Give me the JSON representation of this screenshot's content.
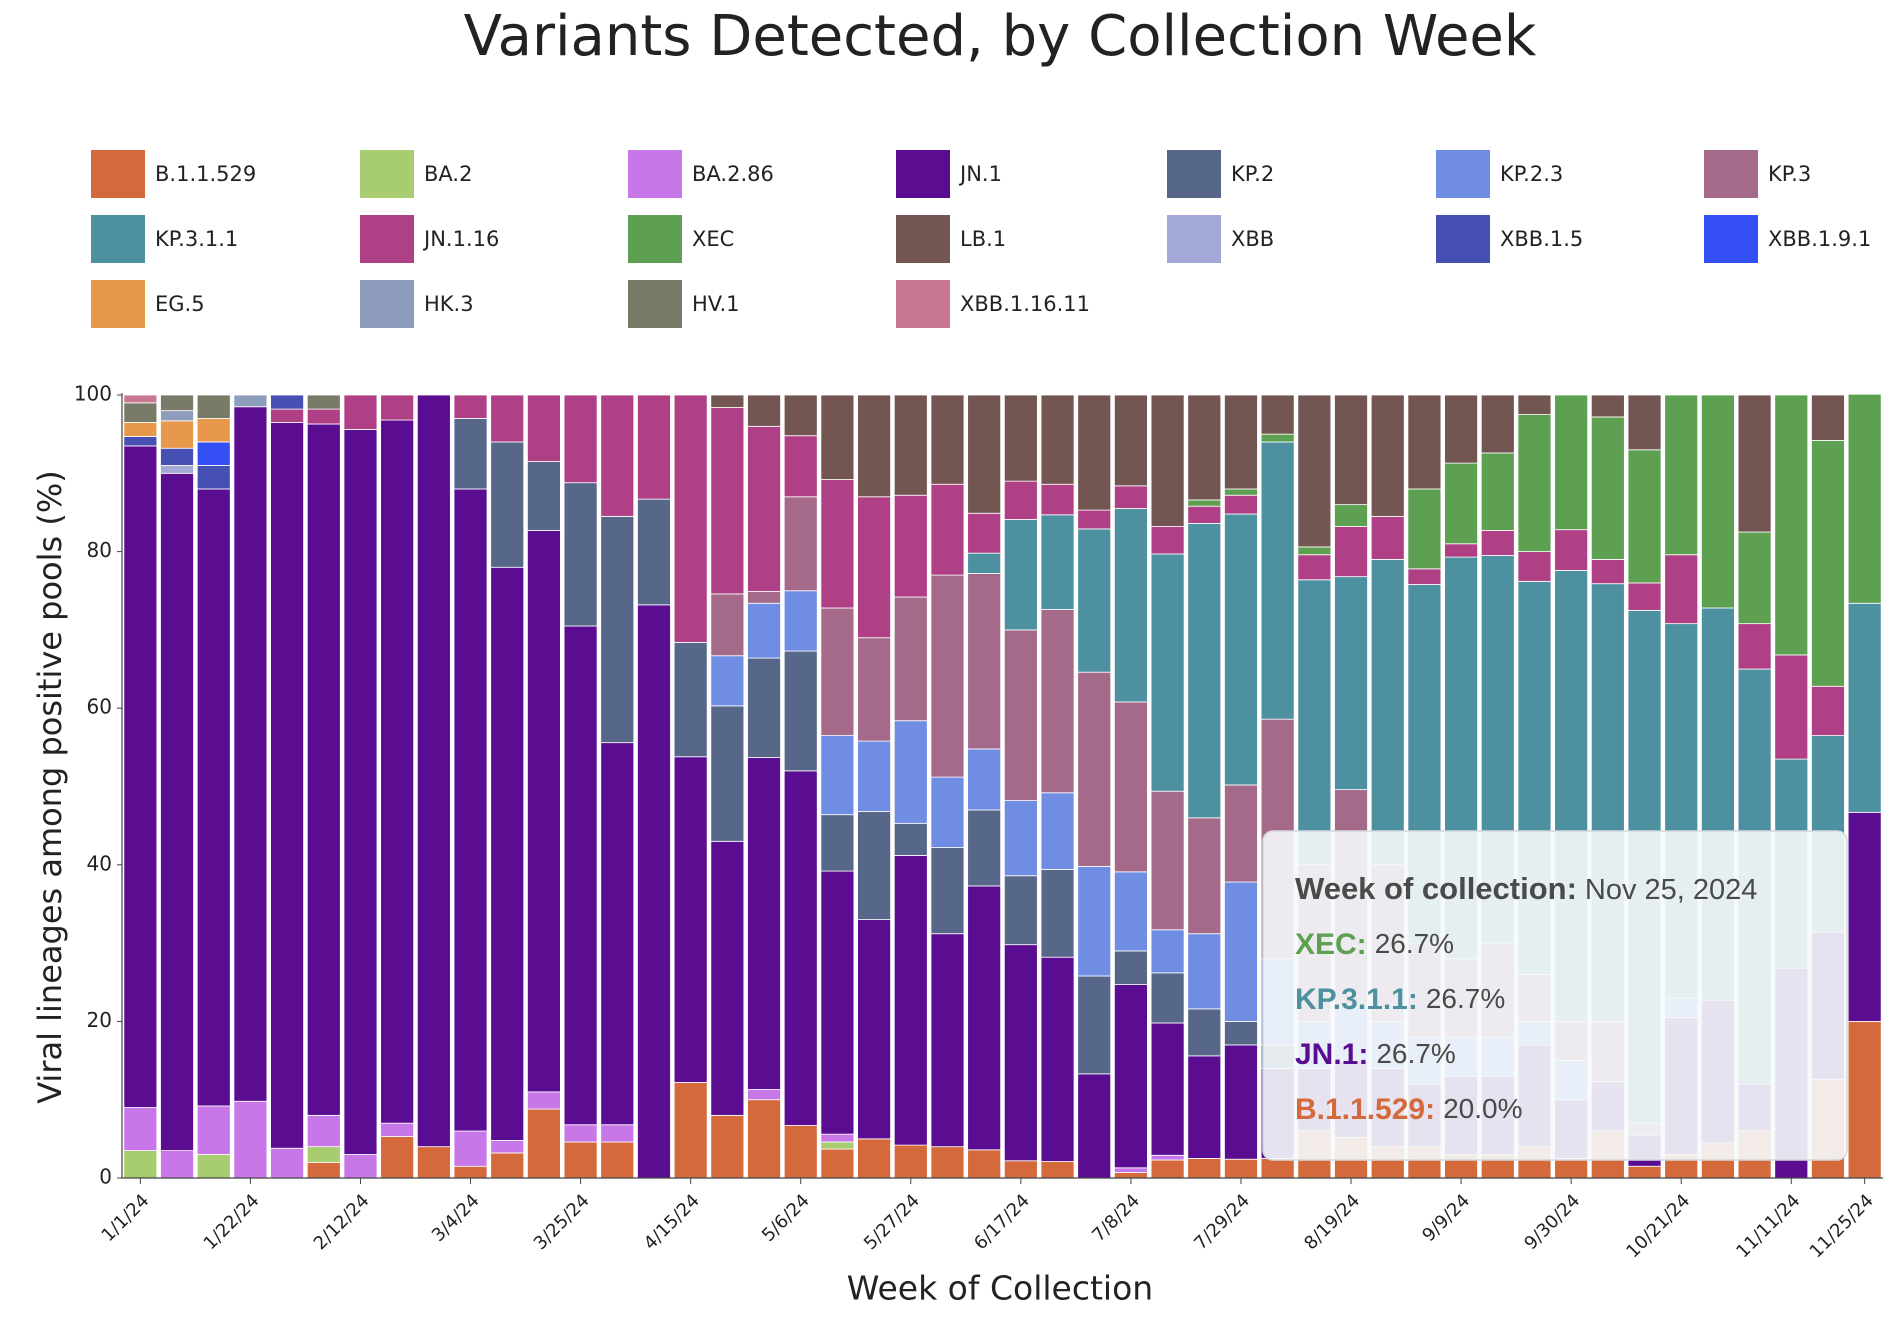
{
  "chart_data": {
    "type": "bar",
    "stacked": true,
    "title": "Variants Detected, by Collection Week",
    "x_label": "Week of Collection",
    "y_label": "Viral lineages among positive pools (%)",
    "legend": "top",
    "grid": false,
    "ylim": [
      0,
      100
    ],
    "yticks": [
      0,
      20,
      40,
      60,
      80,
      100
    ],
    "categories": [
      "1/1/24",
      null,
      null,
      "1/22/24",
      null,
      null,
      "2/12/24",
      null,
      null,
      "3/4/24",
      null,
      null,
      "3/25/24",
      null,
      null,
      "4/15/24",
      null,
      null,
      "5/6/24",
      null,
      null,
      "5/27/24",
      null,
      null,
      "6/17/24",
      null,
      null,
      "7/8/24",
      null,
      null,
      "7/29/24",
      null,
      null,
      "8/19/24",
      null,
      null,
      "9/9/24",
      null,
      null,
      "9/30/24",
      null,
      null,
      "10/21/24",
      null,
      null,
      "11/11/24",
      null,
      "11/25/24"
    ],
    "series": [
      {
        "name": "B.1.1.529",
        "color": "#d4693b",
        "values": [
          0,
          0,
          0,
          0,
          0,
          2,
          0,
          5.3,
          4,
          1.5,
          3.2,
          8.8,
          4.6,
          4.6,
          0,
          12.2,
          8,
          10,
          6.7,
          3.7,
          5,
          4.2,
          4,
          3.6,
          2.2,
          2.1,
          0,
          0.7,
          2.3,
          2.5,
          2.4,
          2.5,
          6,
          5.2,
          4,
          4,
          3,
          3,
          4,
          2.5,
          6,
          1.5,
          3,
          4.5,
          6,
          0,
          12.6,
          20
        ]
      },
      {
        "name": "BA.2",
        "color": "#a8cc70",
        "values": [
          3.5,
          0,
          3,
          0,
          0,
          2,
          0,
          0,
          0,
          0,
          0,
          0,
          0,
          0,
          0,
          0,
          0,
          0,
          0,
          0.9,
          0,
          0,
          0,
          0,
          0,
          0,
          0,
          0,
          0,
          0,
          0,
          0,
          0,
          0,
          0,
          0,
          0,
          0,
          0,
          0,
          0,
          0,
          0,
          0,
          0,
          0,
          0,
          0
        ]
      },
      {
        "name": "BA.2.86",
        "color": "#c877e8",
        "values": [
          5.5,
          3.5,
          6.2,
          9.8,
          3.8,
          4,
          3,
          1.7,
          0,
          4.5,
          1.6,
          2.2,
          2.2,
          2.2,
          0,
          0,
          0,
          1.3,
          0,
          1,
          0,
          0,
          0,
          0,
          0,
          0,
          0,
          0.6,
          0.6,
          0,
          0,
          0,
          0,
          0,
          0,
          0,
          0,
          0,
          0,
          0,
          0,
          0,
          0,
          0,
          0,
          0,
          0,
          0
        ]
      },
      {
        "name": "JN.1",
        "color": "#5b0d91",
        "values": [
          84.5,
          86.5,
          78.8,
          88.7,
          92.7,
          88.3,
          92.6,
          89.8,
          96,
          82,
          73.2,
          71.7,
          63.7,
          48.8,
          73.2,
          41.6,
          35,
          42.4,
          45.3,
          33.6,
          28,
          37,
          27.2,
          33.7,
          27.6,
          26.1,
          13.3,
          23.4,
          16.9,
          13.1,
          14.6,
          11.5,
          8,
          9.8,
          10,
          8,
          10,
          10,
          13,
          7.5,
          6.3,
          4,
          17.5,
          18.2,
          6,
          26.8,
          18.8,
          26.7
        ]
      },
      {
        "name": "KP.2",
        "color": "#566789",
        "values": [
          0,
          0,
          0,
          0,
          0,
          0,
          0,
          0,
          0,
          9,
          16,
          8.8,
          18.3,
          28.9,
          13.5,
          14.6,
          17.3,
          12.7,
          15.3,
          7.2,
          13.8,
          4.1,
          11,
          9.7,
          8.8,
          11.2,
          12.5,
          4.3,
          6.4,
          6,
          3,
          3,
          0,
          0,
          0,
          0,
          0,
          0,
          0,
          0,
          0,
          0,
          0,
          0,
          0,
          0,
          0,
          0
        ]
      },
      {
        "name": "KP.2.3",
        "color": "#6e8de3",
        "values": [
          0,
          0,
          0,
          0,
          0,
          0,
          0,
          0,
          0,
          0,
          0,
          0,
          0,
          0,
          0,
          0,
          6.4,
          7,
          7.7,
          10.1,
          9,
          13.1,
          9,
          7.8,
          9.6,
          9.8,
          14,
          10.1,
          5.5,
          9.6,
          17.8,
          11,
          6,
          7,
          6,
          6,
          5,
          5,
          3,
          5,
          0,
          0,
          2.5,
          0,
          0,
          0,
          0,
          0
        ]
      },
      {
        "name": "KP.3",
        "color": "#a5698a",
        "values": [
          0,
          0,
          0,
          0,
          0,
          0,
          0,
          0,
          0,
          0,
          0,
          0,
          0,
          0,
          0,
          0,
          7.9,
          1.5,
          12,
          16.3,
          13.2,
          15.8,
          25.8,
          22.4,
          21.8,
          23.4,
          24.8,
          21.7,
          17.7,
          14.8,
          12.4,
          30.6,
          20,
          27.6,
          20,
          12,
          10,
          12,
          6,
          5,
          7.7,
          1.5,
          0,
          0,
          0,
          0,
          0,
          0
        ]
      },
      {
        "name": "KP.3.1.1",
        "color": "#4d90a0",
        "values": [
          0,
          0,
          0,
          0,
          0,
          0,
          0,
          0,
          0,
          0,
          0,
          0,
          0,
          0,
          0,
          0,
          0,
          0,
          0,
          0,
          0,
          0,
          0,
          2.6,
          14.1,
          12.1,
          18.3,
          24.7,
          30.3,
          37.6,
          34.6,
          35.4,
          36.4,
          27.2,
          39,
          45.8,
          51.3,
          49.5,
          50.2,
          57.6,
          55.9,
          65.5,
          47.8,
          50.1,
          53,
          26.7,
          25.1,
          26.7
        ]
      },
      {
        "name": "JN.1.16",
        "color": "#b04085",
        "values": [
          0,
          0,
          0,
          0,
          1.7,
          1.9,
          4.4,
          3.2,
          0,
          3,
          6,
          8.5,
          11.2,
          15.5,
          13.3,
          31.6,
          23.8,
          21.1,
          7.8,
          16.4,
          18,
          13,
          11.6,
          5.1,
          4.9,
          3.9,
          2.4,
          2.9,
          3.5,
          2.2,
          2.4,
          0,
          3.2,
          6.4,
          5.5,
          2,
          1.7,
          3.2,
          3.8,
          5.2,
          3.1,
          3.5,
          8.8,
          0,
          5.8,
          13.3,
          6.3,
          0
        ]
      },
      {
        "name": "XEC",
        "color": "#5ea052",
        "values": [
          0,
          0,
          0,
          0,
          0,
          0,
          0,
          0,
          0,
          0,
          0,
          0,
          0,
          0,
          0,
          0,
          0,
          0,
          0,
          0,
          0,
          0,
          0,
          0,
          0,
          0,
          0,
          0,
          0,
          0.8,
          0.8,
          1,
          1,
          2.8,
          0,
          10.2,
          10.3,
          9.9,
          17.5,
          17.2,
          18.2,
          17,
          20.4,
          27.2,
          11.7,
          33.2,
          31.4,
          26.7
        ]
      },
      {
        "name": "LB.1",
        "color": "#735551",
        "values": [
          0,
          0,
          0,
          0,
          0,
          0,
          0,
          0,
          0,
          0,
          0,
          0,
          0,
          0,
          0,
          0,
          1.6,
          4,
          5.2,
          10.8,
          13,
          12.8,
          11.4,
          15.1,
          11,
          11.4,
          14.7,
          11.6,
          16.8,
          13.4,
          12,
          5,
          19.4,
          14,
          15.5,
          12,
          8.7,
          7.4,
          2.5,
          0,
          2.8,
          7,
          0,
          0,
          17.5,
          0,
          5.8,
          0
        ]
      },
      {
        "name": "XBB",
        "color": "#a3a8d6",
        "values": [
          0,
          1,
          0,
          0,
          0,
          0,
          0,
          0,
          0,
          0,
          0,
          0,
          0,
          0,
          0,
          0,
          0,
          0,
          0,
          0,
          0,
          0,
          0,
          0,
          0,
          0,
          0,
          0,
          0,
          0,
          0,
          0,
          0,
          0,
          0,
          0,
          0,
          0,
          0,
          0,
          0,
          0,
          0,
          0,
          0,
          0,
          0,
          0
        ]
      },
      {
        "name": "XBB.1.5",
        "color": "#4650b3",
        "values": [
          1.2,
          2.2,
          3,
          0,
          1.8,
          0,
          0,
          0,
          0,
          0,
          0,
          0,
          0,
          0,
          0,
          0,
          0,
          0,
          0,
          0,
          0,
          0,
          0,
          0,
          0,
          0,
          0,
          0,
          0,
          0,
          0,
          0,
          0,
          0,
          0,
          0,
          0,
          0,
          0,
          0,
          0,
          0,
          0,
          0,
          0,
          0,
          0,
          0
        ]
      },
      {
        "name": "XBB.1.9.1",
        "color": "#3450f5",
        "values": [
          0,
          0,
          3,
          0,
          0,
          0,
          0,
          0,
          0,
          0,
          0,
          0,
          0,
          0,
          0,
          0,
          0,
          0,
          0,
          0,
          0,
          0,
          0,
          0,
          0,
          0,
          0,
          0,
          0,
          0,
          0,
          0,
          0,
          0,
          0,
          0,
          0,
          0,
          0,
          0,
          0,
          0,
          0,
          0,
          0,
          0,
          0,
          0
        ]
      },
      {
        "name": "EG.5",
        "color": "#e8984a",
        "values": [
          1.8,
          3.5,
          3,
          0,
          0,
          0,
          0,
          0,
          0,
          0,
          0,
          0,
          0,
          0,
          0,
          0,
          0,
          0,
          0,
          0,
          0,
          0,
          0,
          0,
          0,
          0,
          0,
          0,
          0,
          0,
          0,
          0,
          0,
          0,
          0,
          0,
          0,
          0,
          0,
          0,
          0,
          0,
          0,
          0,
          0,
          0,
          0,
          0
        ]
      },
      {
        "name": "HK.3",
        "color": "#8f9dbc",
        "values": [
          0,
          1.3,
          0,
          1.5,
          0,
          0,
          0,
          0,
          0,
          0,
          0,
          0,
          0,
          0,
          0,
          0,
          0,
          0,
          0,
          0,
          0,
          0,
          0,
          0,
          0,
          0,
          0,
          0,
          0,
          0,
          0,
          0,
          0,
          0,
          0,
          0,
          0,
          0,
          0,
          0,
          0,
          0,
          0,
          0,
          0,
          0,
          0,
          0
        ]
      },
      {
        "name": "HV.1",
        "color": "#7a7a68",
        "values": [
          2.5,
          2,
          3,
          0,
          0,
          1.8,
          0,
          0,
          0,
          0,
          0,
          0,
          0,
          0,
          0,
          0,
          0,
          0,
          0,
          0,
          0,
          0,
          0,
          0,
          0,
          0,
          0,
          0,
          0,
          0,
          0,
          0,
          0,
          0,
          0,
          0,
          0,
          0,
          0,
          0,
          0,
          0,
          0,
          0,
          0,
          0,
          0,
          0
        ]
      },
      {
        "name": "XBB.1.16.11",
        "color": "#c97690",
        "values": [
          1,
          0,
          0,
          0,
          0,
          0,
          0,
          0,
          0,
          0,
          0,
          0,
          0,
          0,
          0,
          0,
          0,
          0,
          0,
          0,
          0,
          0,
          0,
          0,
          0,
          0,
          0,
          0,
          0,
          0,
          0,
          0,
          0,
          0,
          0,
          0,
          0,
          0,
          0,
          0,
          0,
          0,
          0,
          0,
          0,
          0,
          0,
          0
        ]
      }
    ],
    "tooltip": {
      "title": "Week of collection:",
      "date": "Nov 25, 2024",
      "items": [
        {
          "name": "XEC:",
          "label": "26.7%",
          "color": "#5ea052"
        },
        {
          "name": "KP.3.1.1:",
          "label": "26.7%",
          "color": "#4d90a0"
        },
        {
          "name": "JN.1:",
          "label": "26.7%",
          "color": "#5b0d91"
        },
        {
          "name": "B.1.1.529:",
          "label": "20.0%",
          "color": "#d4693b"
        }
      ]
    }
  }
}
